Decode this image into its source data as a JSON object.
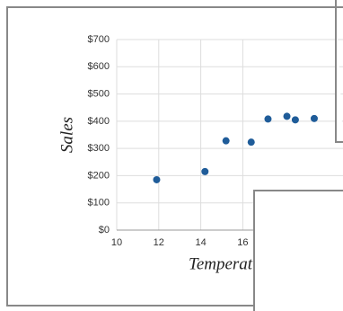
{
  "chart_data": {
    "type": "scatter",
    "x_label": "Temperature",
    "y_label": "Sales",
    "x": [
      11.9,
      14.2,
      15.2,
      16.4,
      17.2,
      18.1,
      18.5,
      19.4
    ],
    "values": [
      185,
      215,
      328,
      323,
      408,
      418,
      405,
      410
    ],
    "color": "#1f5c99",
    "xlim": [
      10,
      21
    ],
    "xticks": [
      10,
      12,
      14,
      16
    ],
    "ylim": [
      0,
      700
    ],
    "yticks": [
      {
        "value": 0,
        "label": "$0"
      },
      {
        "value": 100,
        "label": "$100"
      },
      {
        "value": 200,
        "label": "$200"
      },
      {
        "value": 300,
        "label": "$300"
      },
      {
        "value": 400,
        "label": "$400"
      },
      {
        "value": 500,
        "label": "$500"
      },
      {
        "value": 600,
        "label": "$600"
      },
      {
        "value": 700,
        "label": "$700"
      }
    ],
    "grid": true
  }
}
